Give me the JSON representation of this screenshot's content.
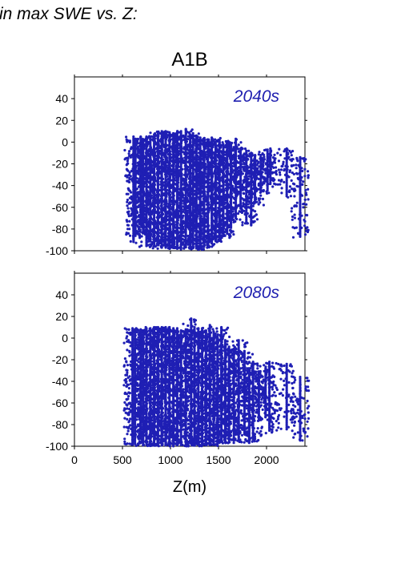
{
  "page": {
    "title": "in max SWE vs. Z:"
  },
  "chart_data": {
    "type": "scatter",
    "title": "A1B",
    "xlabel": "Z(m)",
    "ylabel": "",
    "xlim": [
      0,
      2400
    ],
    "ylim": [
      -100,
      60
    ],
    "x_ticks": [
      0,
      500,
      1000,
      1500,
      2000
    ],
    "y_ticks": [
      -100,
      -80,
      -60,
      -40,
      -20,
      0,
      20,
      40
    ],
    "grid": false,
    "marker_color": "#1f1fb4",
    "label_color": "#2020b0",
    "panels": [
      {
        "label": "2040s",
        "columns": [
          {
            "x": 615,
            "top": 5,
            "bottom": -93
          },
          {
            "x": 635,
            "top": 3,
            "bottom": -88
          },
          {
            "x": 690,
            "top": 5,
            "bottom": -78
          },
          {
            "x": 715,
            "top": 2,
            "bottom": -85
          },
          {
            "x": 750,
            "top": 5,
            "bottom": -98
          },
          {
            "x": 790,
            "top": 4,
            "bottom": -92
          },
          {
            "x": 830,
            "top": 7,
            "bottom": -96
          },
          {
            "x": 870,
            "top": 9,
            "bottom": -97
          },
          {
            "x": 910,
            "top": 10,
            "bottom": -98
          },
          {
            "x": 950,
            "top": 10,
            "bottom": -99
          },
          {
            "x": 990,
            "top": 9,
            "bottom": -99
          },
          {
            "x": 1030,
            "top": 8,
            "bottom": -99
          },
          {
            "x": 1070,
            "top": 9,
            "bottom": -99
          },
          {
            "x": 1110,
            "top": 10,
            "bottom": -99
          },
          {
            "x": 1160,
            "top": 12,
            "bottom": -99
          },
          {
            "x": 1205,
            "top": 6,
            "bottom": -99
          },
          {
            "x": 1235,
            "top": 8,
            "bottom": -99
          },
          {
            "x": 1270,
            "top": 6,
            "bottom": -99
          },
          {
            "x": 1310,
            "top": 4,
            "bottom": -99
          },
          {
            "x": 1350,
            "top": 3,
            "bottom": -98
          },
          {
            "x": 1390,
            "top": 2,
            "bottom": -97
          },
          {
            "x": 1430,
            "top": 4,
            "bottom": -95
          },
          {
            "x": 1470,
            "top": 0,
            "bottom": -92
          },
          {
            "x": 1510,
            "top": 2,
            "bottom": -90
          },
          {
            "x": 1550,
            "top": -2,
            "bottom": -88
          },
          {
            "x": 1590,
            "top": 0,
            "bottom": -86
          },
          {
            "x": 1630,
            "top": -1,
            "bottom": -80
          },
          {
            "x": 1680,
            "top": 3,
            "bottom": -72
          },
          {
            "x": 1730,
            "top": -6,
            "bottom": -62
          },
          {
            "x": 1790,
            "top": -8,
            "bottom": -75
          },
          {
            "x": 1840,
            "top": -10,
            "bottom": -78
          },
          {
            "x": 1880,
            "top": -12,
            "bottom": -58
          },
          {
            "x": 1940,
            "top": -12,
            "bottom": -48
          },
          {
            "x": 2010,
            "top": -7,
            "bottom": -46
          },
          {
            "x": 2040,
            "top": -6,
            "bottom": -40
          },
          {
            "x": 2210,
            "top": -6,
            "bottom": -52
          },
          {
            "x": 2350,
            "top": -14,
            "bottom": -88
          }
        ]
      },
      {
        "label": "2080s",
        "columns": [
          {
            "x": 605,
            "top": 9,
            "bottom": -100
          },
          {
            "x": 630,
            "top": 8,
            "bottom": -100
          },
          {
            "x": 690,
            "top": 8,
            "bottom": -95
          },
          {
            "x": 715,
            "top": 7,
            "bottom": -100
          },
          {
            "x": 750,
            "top": 9,
            "bottom": -100
          },
          {
            "x": 790,
            "top": 9,
            "bottom": -100
          },
          {
            "x": 830,
            "top": 10,
            "bottom": -100
          },
          {
            "x": 870,
            "top": 10,
            "bottom": -100
          },
          {
            "x": 910,
            "top": 10,
            "bottom": -100
          },
          {
            "x": 950,
            "top": 10,
            "bottom": -100
          },
          {
            "x": 990,
            "top": 10,
            "bottom": -100
          },
          {
            "x": 1030,
            "top": 9,
            "bottom": -100
          },
          {
            "x": 1070,
            "top": 9,
            "bottom": -100
          },
          {
            "x": 1110,
            "top": 7,
            "bottom": -100
          },
          {
            "x": 1160,
            "top": 8,
            "bottom": -100
          },
          {
            "x": 1215,
            "top": 18,
            "bottom": -100
          },
          {
            "x": 1250,
            "top": 10,
            "bottom": -100
          },
          {
            "x": 1290,
            "top": 8,
            "bottom": -100
          },
          {
            "x": 1330,
            "top": 9,
            "bottom": -100
          },
          {
            "x": 1370,
            "top": 7,
            "bottom": -100
          },
          {
            "x": 1410,
            "top": 12,
            "bottom": -100
          },
          {
            "x": 1450,
            "top": 4,
            "bottom": -100
          },
          {
            "x": 1490,
            "top": 2,
            "bottom": -100
          },
          {
            "x": 1530,
            "top": 10,
            "bottom": -98
          },
          {
            "x": 1570,
            "top": -2,
            "bottom": -97
          },
          {
            "x": 1610,
            "top": -8,
            "bottom": -98
          },
          {
            "x": 1660,
            "top": -10,
            "bottom": -96
          },
          {
            "x": 1710,
            "top": -2,
            "bottom": -96
          },
          {
            "x": 1770,
            "top": -12,
            "bottom": -90
          },
          {
            "x": 1820,
            "top": -28,
            "bottom": -98
          },
          {
            "x": 1860,
            "top": -22,
            "bottom": -96
          },
          {
            "x": 1920,
            "top": -32,
            "bottom": -78
          },
          {
            "x": 1990,
            "top": -28,
            "bottom": -74
          },
          {
            "x": 2030,
            "top": -22,
            "bottom": -88
          },
          {
            "x": 2210,
            "top": -24,
            "bottom": -86
          },
          {
            "x": 2350,
            "top": -36,
            "bottom": -96
          }
        ]
      }
    ]
  }
}
